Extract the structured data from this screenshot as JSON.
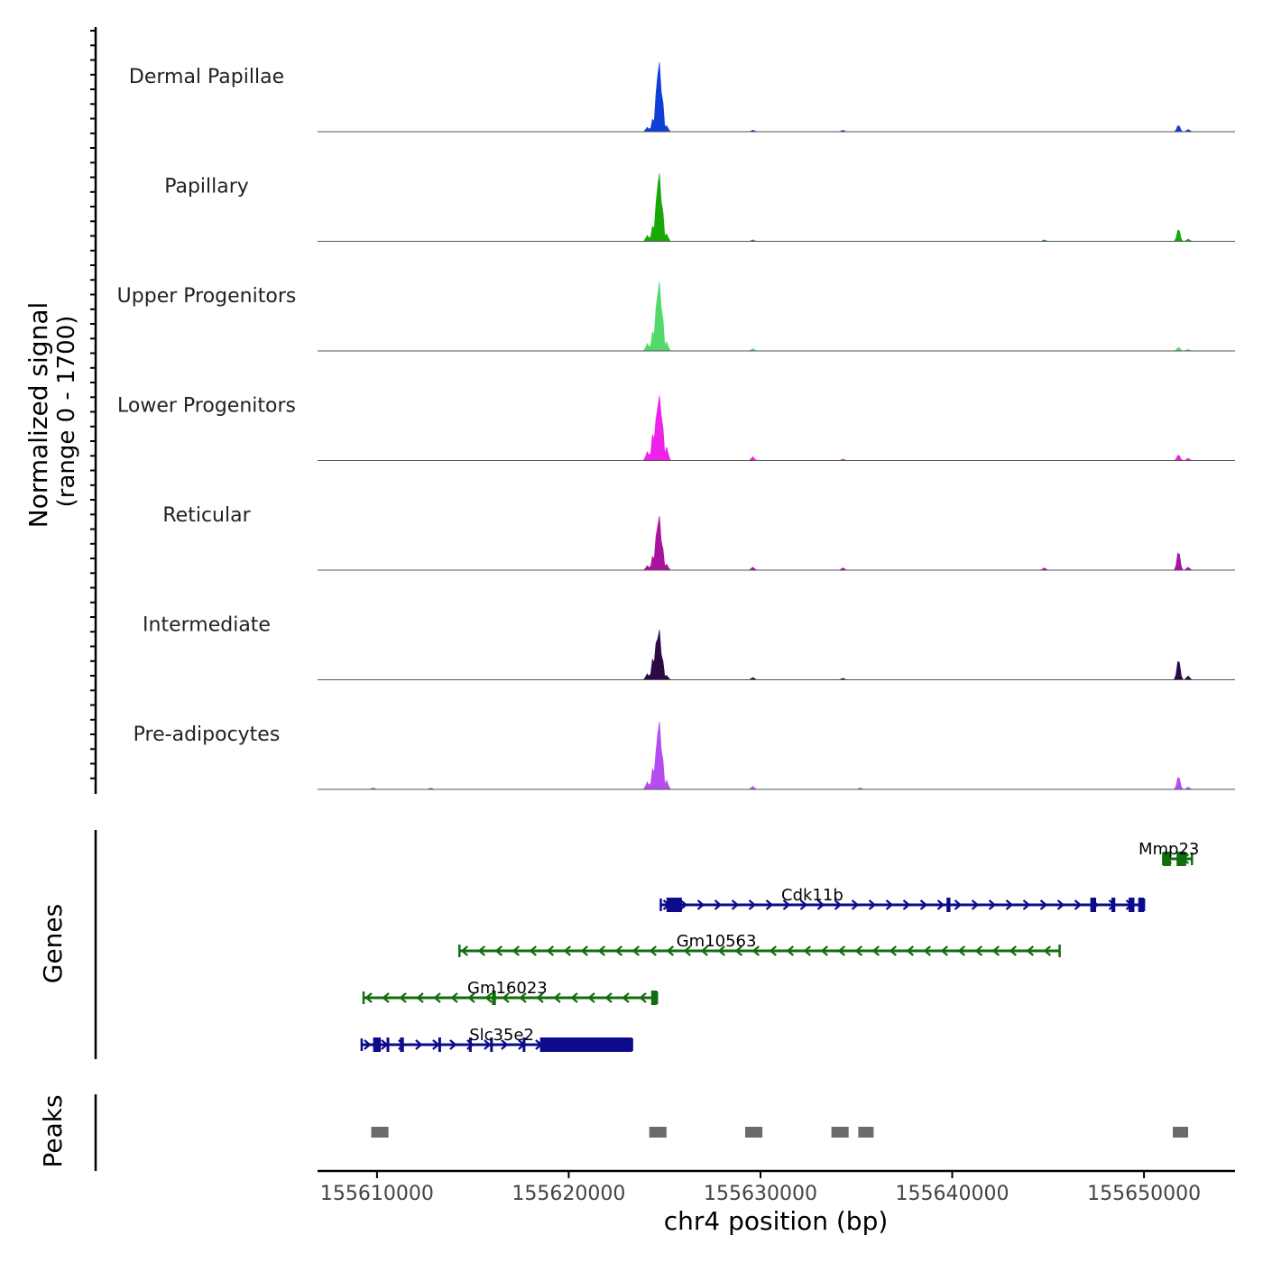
{
  "chart_data": {
    "type": "coverage-track",
    "chromosome": "chr4",
    "xlim": [
      155606900,
      155654700
    ],
    "xlabel": "chr4 position (bp)",
    "x_ticks": [
      155610000,
      155620000,
      155630000,
      155640000,
      155650000
    ],
    "x_tick_labels": [
      "155610000",
      "155620000",
      "155630000",
      "155640000",
      "155650000"
    ],
    "coverage": {
      "ylabel_line1": "Normalized signal",
      "ylabel_line2": "(range 0 - 1700)",
      "ylim": [
        0,
        1700
      ],
      "tracks": [
        {
          "name": "Dermal Papillae",
          "color": "#0f3fd6",
          "peaks": [
            [
              155624100,
              0.06
            ],
            [
              155624400,
              0.18
            ],
            [
              155624600,
              0.62
            ],
            [
              155624700,
              1.0
            ],
            [
              155624850,
              0.55
            ],
            [
              155625100,
              0.08
            ],
            [
              155629600,
              0.02
            ],
            [
              155634300,
              0.02
            ],
            [
              155651800,
              0.09
            ],
            [
              155652300,
              0.03
            ]
          ]
        },
        {
          "name": "Papillary",
          "color": "#18a808",
          "peaks": [
            [
              155624100,
              0.08
            ],
            [
              155624400,
              0.22
            ],
            [
              155624600,
              0.62
            ],
            [
              155624700,
              0.98
            ],
            [
              155624850,
              0.55
            ],
            [
              155625100,
              0.1
            ],
            [
              155629600,
              0.02
            ],
            [
              155644800,
              0.02
            ],
            [
              155651800,
              0.17
            ],
            [
              155652300,
              0.03
            ]
          ]
        },
        {
          "name": "Upper Progenitors",
          "color": "#55d86a",
          "peaks": [
            [
              155624100,
              0.1
            ],
            [
              155624400,
              0.28
            ],
            [
              155624600,
              0.7
            ],
            [
              155624700,
              1.0
            ],
            [
              155624850,
              0.6
            ],
            [
              155625100,
              0.12
            ],
            [
              155629600,
              0.03
            ],
            [
              155651800,
              0.05
            ],
            [
              155652300,
              0.02
            ]
          ]
        },
        {
          "name": "Lower Progenitors",
          "color": "#ee22e8",
          "peaks": [
            [
              155624100,
              0.12
            ],
            [
              155624400,
              0.38
            ],
            [
              155624600,
              0.68
            ],
            [
              155624700,
              0.94
            ],
            [
              155624850,
              0.62
            ],
            [
              155625100,
              0.18
            ],
            [
              155629600,
              0.05
            ],
            [
              155634300,
              0.02
            ],
            [
              155651800,
              0.08
            ],
            [
              155652300,
              0.03
            ]
          ]
        },
        {
          "name": "Reticular",
          "color": "#a8129f",
          "peaks": [
            [
              155624100,
              0.06
            ],
            [
              155624400,
              0.2
            ],
            [
              155624600,
              0.55
            ],
            [
              155624700,
              0.78
            ],
            [
              155624850,
              0.4
            ],
            [
              155625100,
              0.08
            ],
            [
              155629600,
              0.04
            ],
            [
              155634300,
              0.03
            ],
            [
              155644800,
              0.03
            ],
            [
              155651800,
              0.26
            ],
            [
              155652300,
              0.04
            ]
          ]
        },
        {
          "name": "Intermediate",
          "color": "#2b0a46",
          "peaks": [
            [
              155624100,
              0.08
            ],
            [
              155624400,
              0.3
            ],
            [
              155624600,
              0.6
            ],
            [
              155624700,
              0.72
            ],
            [
              155624850,
              0.35
            ],
            [
              155625100,
              0.06
            ],
            [
              155629600,
              0.03
            ],
            [
              155634300,
              0.02
            ],
            [
              155651800,
              0.28
            ],
            [
              155652300,
              0.05
            ]
          ]
        },
        {
          "name": "Pre-adipocytes",
          "color": "#b44cf0",
          "peaks": [
            [
              155624100,
              0.1
            ],
            [
              155624400,
              0.3
            ],
            [
              155624600,
              0.62
            ],
            [
              155624700,
              0.98
            ],
            [
              155624850,
              0.55
            ],
            [
              155625100,
              0.12
            ],
            [
              155609800,
              0.02
            ],
            [
              155612800,
              0.02
            ],
            [
              155629600,
              0.04
            ],
            [
              155635200,
              0.02
            ],
            [
              155651800,
              0.18
            ],
            [
              155652300,
              0.03
            ]
          ]
        }
      ]
    },
    "genes": {
      "ylabel": "Genes",
      "items": [
        {
          "name": "Mmp23",
          "strand": "-",
          "color": "#116d0e",
          "row": 0,
          "start": 155651000,
          "end": 155652500,
          "exons": [
            [
              155651000,
              155651400
            ],
            [
              155651700,
              155652200
            ]
          ],
          "label_at": 155651300
        },
        {
          "name": "Cdk11b",
          "strand": "+",
          "color": "#0b0b8b",
          "row": 1,
          "start": 155624800,
          "end": 155650000,
          "exons": [
            [
              155625100,
              155625900
            ],
            [
              155639700,
              155639900
            ],
            [
              155647200,
              155647500
            ],
            [
              155648300,
              155648500
            ],
            [
              155649200,
              155649500
            ],
            [
              155649700,
              155650000
            ]
          ],
          "label_at": 155632700
        },
        {
          "name": "Gm10563",
          "strand": "-",
          "color": "#116d0e",
          "row": 2,
          "start": 155614300,
          "end": 155645600,
          "exons": [],
          "label_at": 155627700
        },
        {
          "name": "Gm16023",
          "strand": "-",
          "color": "#116d0e",
          "row": 3,
          "start": 155609300,
          "end": 155624600,
          "exons": [
            [
              155624300,
              155624600
            ],
            [
              155616000,
              155616200
            ]
          ],
          "label_at": 155616800
        },
        {
          "name": "Slc35e2",
          "strand": "+",
          "color": "#0b0b8b",
          "row": 4,
          "start": 155609200,
          "end": 155623300,
          "exons": [
            [
              155609800,
              155610200
            ],
            [
              155610500,
              155610600
            ],
            [
              155611200,
              155611400
            ],
            [
              155613200,
              155613300
            ],
            [
              155614800,
              155614900
            ],
            [
              155615900,
              155616000
            ],
            [
              155617600,
              155617700
            ],
            [
              155618500,
              155623300
            ]
          ],
          "label_at": 155616500
        }
      ]
    },
    "peaks": {
      "ylabel": "Peaks",
      "color": "#6b6b6b",
      "regions": [
        [
          155609700,
          155610600
        ],
        [
          155624200,
          155625100
        ],
        [
          155629200,
          155630100
        ],
        [
          155633700,
          155634600
        ],
        [
          155635100,
          155635900
        ],
        [
          155651500,
          155652300
        ]
      ]
    }
  }
}
